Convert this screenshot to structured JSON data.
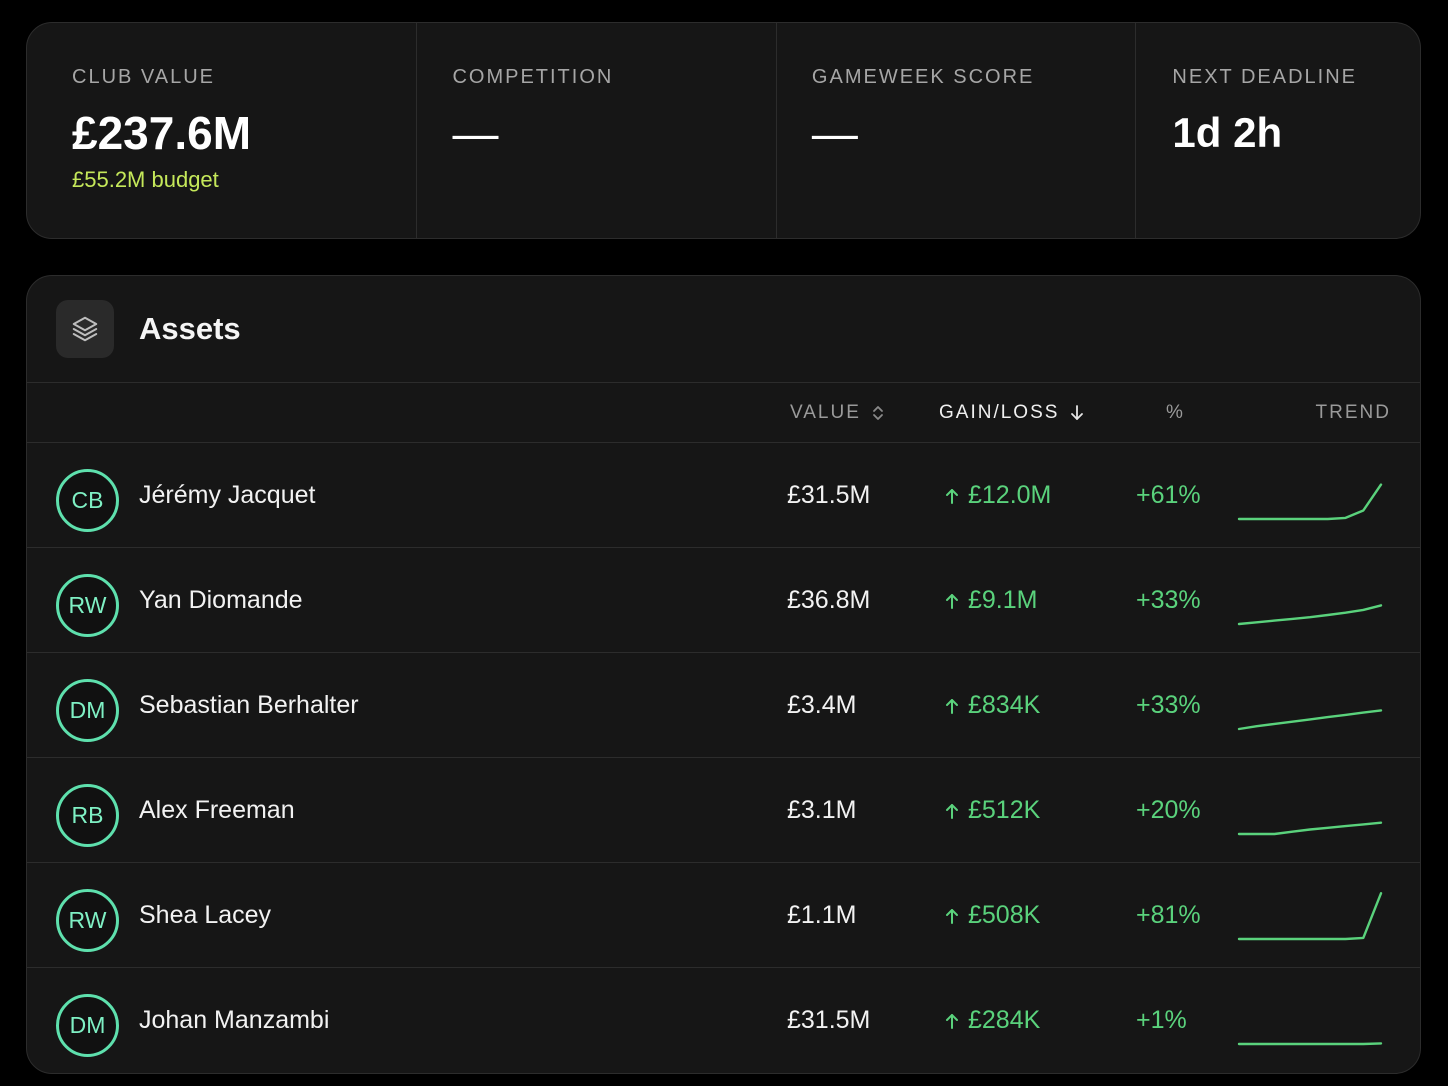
{
  "stats": [
    {
      "label": "CLUB VALUE",
      "value": "£237.6M",
      "sub": "£55.2M budget"
    },
    {
      "label": "COMPETITION",
      "value": "—"
    },
    {
      "label": "GAMEWEEK SCORE",
      "value": "—"
    },
    {
      "label": "NEXT DEADLINE",
      "value": "1d 2h"
    }
  ],
  "assets": {
    "icon": "layers-icon",
    "title": "Assets",
    "columns": {
      "value": "VALUE",
      "gain": "GAIN/LOSS",
      "pct": "%",
      "trend": "TREND"
    },
    "colors": {
      "positive": "#5ad27c",
      "badge": "#5ee0ad",
      "budget": "#c5e85a"
    },
    "rows": [
      {
        "pos": "CB",
        "name": "Jérémy Jacquet",
        "value": "£31.5M",
        "gain": "£12.0M",
        "pct": "+61%",
        "trend": [
          1,
          1,
          1,
          1,
          1,
          1,
          1.02,
          1.15,
          1.61
        ]
      },
      {
        "pos": "RW",
        "name": "Yan Diomande",
        "value": "£36.8M",
        "gain": "£9.1M",
        "pct": "+33%",
        "trend": [
          1,
          1.03,
          1.06,
          1.09,
          1.12,
          1.16,
          1.2,
          1.25,
          1.33
        ]
      },
      {
        "pos": "DM",
        "name": "Sebastian Berhalter",
        "value": "£3.4M",
        "gain": "£834K",
        "pct": "+33%",
        "trend": [
          1,
          1.05,
          1.09,
          1.13,
          1.17,
          1.21,
          1.25,
          1.29,
          1.33
        ]
      },
      {
        "pos": "RB",
        "name": "Alex Freeman",
        "value": "£3.1M",
        "gain": "£512K",
        "pct": "+20%",
        "trend": [
          1,
          1,
          1,
          1.04,
          1.08,
          1.11,
          1.14,
          1.17,
          1.2
        ]
      },
      {
        "pos": "RW",
        "name": "Shea Lacey",
        "value": "£1.1M",
        "gain": "£508K",
        "pct": "+81%",
        "trend": [
          1,
          1,
          1,
          1,
          1,
          1,
          1,
          1.02,
          1.81
        ]
      },
      {
        "pos": "DM",
        "name": "Johan Manzambi",
        "value": "£31.5M",
        "gain": "£284K",
        "pct": "+1%",
        "trend": [
          1,
          1,
          1,
          1,
          1,
          1,
          1,
          1,
          1.01
        ]
      }
    ]
  }
}
